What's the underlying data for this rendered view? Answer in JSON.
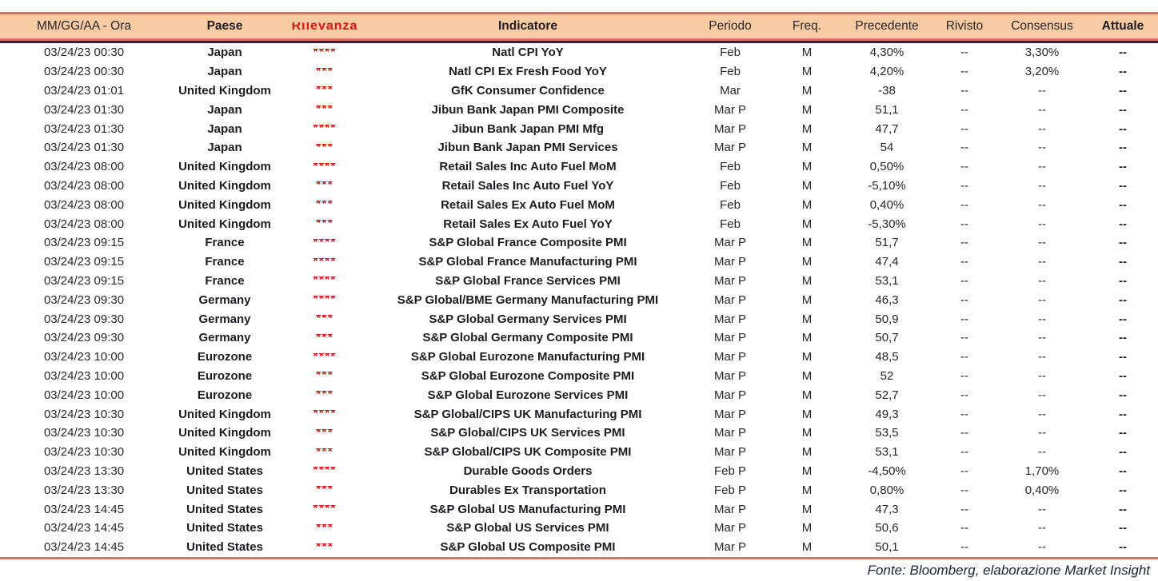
{
  "table": {
    "columns": [
      {
        "key": "datetime",
        "label": "MM/GG/AA - Ora"
      },
      {
        "key": "country",
        "label": "Paese"
      },
      {
        "key": "relevance",
        "label": "Rilevanza"
      },
      {
        "key": "indicator",
        "label": "Indicatore"
      },
      {
        "key": "period",
        "label": "Periodo"
      },
      {
        "key": "freq",
        "label": "Freq."
      },
      {
        "key": "previous",
        "label": "Precedente"
      },
      {
        "key": "revised",
        "label": "Rivisto"
      },
      {
        "key": "consensus",
        "label": "Consensus"
      },
      {
        "key": "actual",
        "label": "Attuale"
      }
    ],
    "rows": [
      {
        "datetime": "03/24/23 00:30",
        "country": "Japan",
        "relevance": "****",
        "indicator": "Natl CPI YoY",
        "period": "Feb",
        "freq": "M",
        "previous": "4,30%",
        "revised": "--",
        "consensus": "3,30%",
        "actual": "--"
      },
      {
        "datetime": "03/24/23 00:30",
        "country": "Japan",
        "relevance": "***",
        "indicator": "Natl CPI Ex Fresh Food YoY",
        "period": "Feb",
        "freq": "M",
        "previous": "4,20%",
        "revised": "--",
        "consensus": "3,20%",
        "actual": "--"
      },
      {
        "datetime": "03/24/23 01:01",
        "country": "United Kingdom",
        "relevance": "***",
        "indicator": "GfK Consumer Confidence",
        "period": "Mar",
        "freq": "M",
        "previous": "-38",
        "revised": "--",
        "consensus": "--",
        "actual": "--"
      },
      {
        "datetime": "03/24/23 01:30",
        "country": "Japan",
        "relevance": "***",
        "indicator": "Jibun Bank Japan PMI Composite",
        "period": "Mar P",
        "freq": "M",
        "previous": "51,1",
        "revised": "--",
        "consensus": "--",
        "actual": "--"
      },
      {
        "datetime": "03/24/23 01:30",
        "country": "Japan",
        "relevance": "****",
        "indicator": "Jibun Bank Japan PMI Mfg",
        "period": "Mar P",
        "freq": "M",
        "previous": "47,7",
        "revised": "--",
        "consensus": "--",
        "actual": "--"
      },
      {
        "datetime": "03/24/23 01:30",
        "country": "Japan",
        "relevance": "***",
        "indicator": "Jibun Bank Japan PMI Services",
        "period": "Mar P",
        "freq": "M",
        "previous": "54",
        "revised": "--",
        "consensus": "--",
        "actual": "--"
      },
      {
        "datetime": "03/24/23 08:00",
        "country": "United Kingdom",
        "relevance": "****",
        "indicator": "Retail Sales Inc Auto Fuel MoM",
        "period": "Feb",
        "freq": "M",
        "previous": "0,50%",
        "revised": "--",
        "consensus": "--",
        "actual": "--"
      },
      {
        "datetime": "03/24/23 08:00",
        "country": "United Kingdom",
        "relevance": "***",
        "indicator": "Retail Sales Inc Auto Fuel YoY",
        "period": "Feb",
        "freq": "M",
        "previous": "-5,10%",
        "revised": "--",
        "consensus": "--",
        "actual": "--"
      },
      {
        "datetime": "03/24/23 08:00",
        "country": "United Kingdom",
        "relevance": "***",
        "indicator": "Retail Sales Ex Auto Fuel MoM",
        "period": "Feb",
        "freq": "M",
        "previous": "0,40%",
        "revised": "--",
        "consensus": "--",
        "actual": "--"
      },
      {
        "datetime": "03/24/23 08:00",
        "country": "United Kingdom",
        "relevance": "***",
        "indicator": "Retail Sales Ex Auto Fuel YoY",
        "period": "Feb",
        "freq": "M",
        "previous": "-5,30%",
        "revised": "--",
        "consensus": "--",
        "actual": "--"
      },
      {
        "datetime": "03/24/23 09:15",
        "country": "France",
        "relevance": "****",
        "indicator": "S&P Global France Composite PMI",
        "period": "Mar P",
        "freq": "M",
        "previous": "51,7",
        "revised": "--",
        "consensus": "--",
        "actual": "--"
      },
      {
        "datetime": "03/24/23 09:15",
        "country": "France",
        "relevance": "****",
        "indicator": "S&P Global France Manufacturing PMI",
        "period": "Mar P",
        "freq": "M",
        "previous": "47,4",
        "revised": "--",
        "consensus": "--",
        "actual": "--"
      },
      {
        "datetime": "03/24/23 09:15",
        "country": "France",
        "relevance": "****",
        "indicator": "S&P Global France Services PMI",
        "period": "Mar P",
        "freq": "M",
        "previous": "53,1",
        "revised": "--",
        "consensus": "--",
        "actual": "--"
      },
      {
        "datetime": "03/24/23 09:30",
        "country": "Germany",
        "relevance": "****",
        "indicator": "S&P Global/BME Germany Manufacturing PMI",
        "period": "Mar P",
        "freq": "M",
        "previous": "46,3",
        "revised": "--",
        "consensus": "--",
        "actual": "--"
      },
      {
        "datetime": "03/24/23 09:30",
        "country": "Germany",
        "relevance": "***",
        "indicator": "S&P Global Germany Services PMI",
        "period": "Mar P",
        "freq": "M",
        "previous": "50,9",
        "revised": "--",
        "consensus": "--",
        "actual": "--"
      },
      {
        "datetime": "03/24/23 09:30",
        "country": "Germany",
        "relevance": "***",
        "indicator": "S&P Global Germany Composite PMI",
        "period": "Mar P",
        "freq": "M",
        "previous": "50,7",
        "revised": "--",
        "consensus": "--",
        "actual": "--"
      },
      {
        "datetime": "03/24/23 10:00",
        "country": "Eurozone",
        "relevance": "****",
        "indicator": "S&P Global Eurozone Manufacturing PMI",
        "period": "Mar P",
        "freq": "M",
        "previous": "48,5",
        "revised": "--",
        "consensus": "--",
        "actual": "--"
      },
      {
        "datetime": "03/24/23 10:00",
        "country": "Eurozone",
        "relevance": "***",
        "indicator": "S&P Global Eurozone Composite PMI",
        "period": "Mar P",
        "freq": "M",
        "previous": "52",
        "revised": "--",
        "consensus": "--",
        "actual": "--"
      },
      {
        "datetime": "03/24/23 10:00",
        "country": "Eurozone",
        "relevance": "***",
        "indicator": "S&P Global Eurozone Services PMI",
        "period": "Mar P",
        "freq": "M",
        "previous": "52,7",
        "revised": "--",
        "consensus": "--",
        "actual": "--"
      },
      {
        "datetime": "03/24/23 10:30",
        "country": "United Kingdom",
        "relevance": "****",
        "indicator": "S&P Global/CIPS UK Manufacturing PMI",
        "period": "Mar P",
        "freq": "M",
        "previous": "49,3",
        "revised": "--",
        "consensus": "--",
        "actual": "--"
      },
      {
        "datetime": "03/24/23 10:30",
        "country": "United Kingdom",
        "relevance": "***",
        "indicator": "S&P Global/CIPS UK Services PMI",
        "period": "Mar P",
        "freq": "M",
        "previous": "53,5",
        "revised": "--",
        "consensus": "--",
        "actual": "--"
      },
      {
        "datetime": "03/24/23 10:30",
        "country": "United Kingdom",
        "relevance": "***",
        "indicator": "S&P Global/CIPS UK Composite PMI",
        "period": "Mar P",
        "freq": "M",
        "previous": "53,1",
        "revised": "--",
        "consensus": "--",
        "actual": "--"
      },
      {
        "datetime": "03/24/23 13:30",
        "country": "United States",
        "relevance": "****",
        "indicator": "Durable Goods Orders",
        "period": "Feb P",
        "freq": "M",
        "previous": "-4,50%",
        "revised": "--",
        "consensus": "1,70%",
        "actual": "--"
      },
      {
        "datetime": "03/24/23 13:30",
        "country": "United States",
        "relevance": "***",
        "indicator": "Durables Ex Transportation",
        "period": "Feb P",
        "freq": "M",
        "previous": "0,80%",
        "revised": "--",
        "consensus": "0,40%",
        "actual": "--"
      },
      {
        "datetime": "03/24/23 14:45",
        "country": "United States",
        "relevance": "****",
        "indicator": "S&P Global US Manufacturing PMI",
        "period": "Mar P",
        "freq": "M",
        "previous": "47,3",
        "revised": "--",
        "consensus": "--",
        "actual": "--"
      },
      {
        "datetime": "03/24/23 14:45",
        "country": "United States",
        "relevance": "***",
        "indicator": "S&P Global US Services PMI",
        "period": "Mar P",
        "freq": "M",
        "previous": "50,6",
        "revised": "--",
        "consensus": "--",
        "actual": "--"
      },
      {
        "datetime": "03/24/23 14:45",
        "country": "United States",
        "relevance": "***",
        "indicator": "S&P Global US Composite PMI",
        "period": "Mar P",
        "freq": "M",
        "previous": "50,1",
        "revised": "--",
        "consensus": "--",
        "actual": "--"
      }
    ]
  },
  "footer": {
    "source": "Fonte: Bloomberg, elaborazione Market Insight"
  },
  "colors": {
    "header_bg": "#F8CBA2",
    "accent_line": "#DF7066",
    "dark_line": "#232A35",
    "star_red": "#E01414",
    "text": "#1C1C22"
  }
}
